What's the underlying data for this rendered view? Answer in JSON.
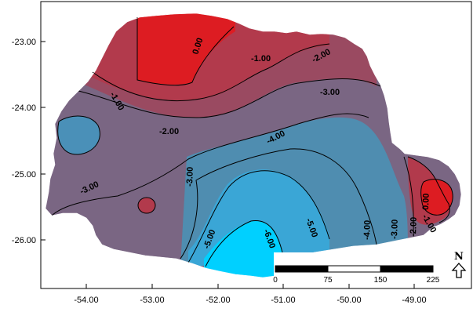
{
  "map": {
    "type": "contour-map",
    "x_axis": {
      "ticks": [
        "-54.00",
        "-53.00",
        "-52.00",
        "-51.00",
        "-50.00",
        "-49.00"
      ]
    },
    "y_axis": {
      "ticks": [
        "-23.00",
        "-24.00",
        "-25.00",
        "-26.00"
      ]
    },
    "contour_labels": [
      "0.00",
      "-1.00",
      "-2.00",
      "-1.00",
      "-3.00",
      "-2.00",
      "-4.00",
      "-3.00",
      "-3.00",
      "-5.00",
      "-6.00",
      "-5.00",
      "-4.00",
      "-3.00",
      "-2.00",
      "0.00",
      "-1.00"
    ],
    "colors": {
      "high": "#dd1c22",
      "mid_high": "#b23a4c",
      "mid": "#7a6683",
      "mid_low": "#4f8db0",
      "low": "#3aa6d6",
      "lowest": "#00d0ff"
    }
  },
  "scale_bar": {
    "labels": [
      "0",
      "75",
      "150",
      "225"
    ]
  },
  "north_arrow": {
    "letter": "N"
  }
}
